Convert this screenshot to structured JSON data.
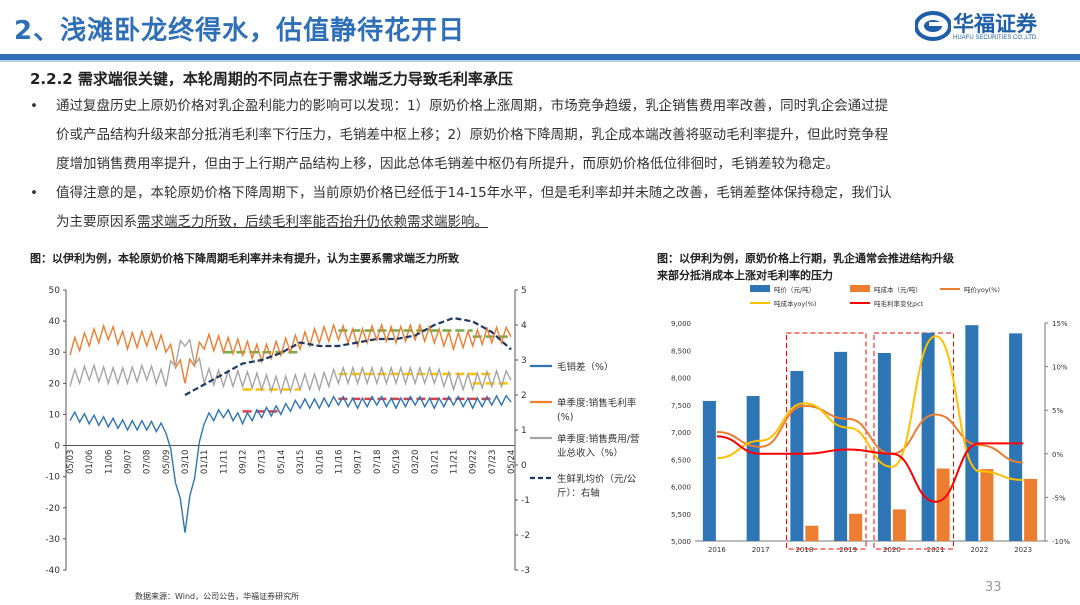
{
  "title": "2、浅滩卧龙终得水，估值静待花开日",
  "logo": {
    "name": "华福证券",
    "sub": "HUAFU SECURITIES CO.,LTD."
  },
  "heading": "2.2.2 需求端很关键，本轮周期的不同点在于需求端乏力导致毛利率承压",
  "bullets": [
    {
      "dot": "•",
      "lines": [
        "通过复盘历史上原奶价格对乳企盈利能力的影响可以发现：1）原奶价格上涨周期，市场竞争趋缓，乳企销售费用率改善，同时乳企会通过提",
        "价或产品结构升级来部分抵消毛利率下行压力，毛销差中枢上移；2）原奶价格下降周期，乳企成本端改善将驱动毛利率提升，但此时竞争程",
        "度增加销售费用率提升，但由于上行期产品结构上移，因此总体毛销差中枢仍有所提升，而原奶价格低位徘徊时，毛销差较为稳定。"
      ]
    },
    {
      "dot": "•",
      "line1": "值得注意的是，本轮原奶价格下降周期下，当前原奶价格已经低于14-15年水平，但是毛利率却并未随之改善，毛销差整体保持稳定，我们认",
      "line2_pre": "为主要原因系",
      "line2_u": "需求端乏力所致，后续毛利率能否抬升仍依赖需求端影响。"
    }
  ],
  "caption_left": "图：以伊利为例，本轮原奶价格下降周期毛利率并未有提升，认为主要系需求端乏力所致",
  "caption_right": [
    "图：以伊利为例，原奶价格上行期，乳企通常会推进结构升级",
    "来部分抵消成本上涨对毛利率的压力"
  ],
  "colors": {
    "blue": "#2e75b6",
    "orange": "#ed7d31",
    "gray": "#a5a5a5",
    "navy": "#1f3864",
    "green": "#70ad47",
    "yellow": "#ffc000",
    "red": "#e00000",
    "redline": "#ff0000",
    "dash": "#d9414a"
  },
  "chart_data": [
    {
      "type": "line",
      "title": "以伊利为例，本轮原奶价格下降周期毛利率并未有提升",
      "ylim": [
        -40,
        50
      ],
      "y2lim": [
        -3,
        5
      ],
      "yticks": [
        "50",
        "40",
        "30",
        "20",
        "10",
        "0",
        "-10",
        "-20",
        "-30",
        "-40"
      ],
      "y2ticks": [
        "5",
        "4",
        "3",
        "2",
        "1",
        "0",
        "-1",
        "-2",
        "-3"
      ],
      "categories": [
        "05/03",
        "01/06",
        "11/06",
        "09/07",
        "07/08",
        "05/09",
        "03/10",
        "01/11",
        "11/11",
        "09/12",
        "07/13",
        "05/14",
        "03/15",
        "01/16",
        "11/16",
        "09/17",
        "07/18",
        "05/19",
        "03/20",
        "01/21",
        "11/21",
        "09/22",
        "07/23",
        "05/24"
      ],
      "series": [
        {
          "name": "毛销差（%）",
          "axis": "left",
          "values": [
            9,
            8,
            7,
            6,
            6,
            5,
            -27,
            8,
            10,
            8,
            10,
            11,
            13,
            13,
            14,
            13,
            14,
            13,
            14,
            13,
            14,
            13,
            14,
            14
          ]
        },
        {
          "name": "单季度:销售毛利率(%)",
          "axis": "left",
          "values": [
            31,
            34,
            36,
            33,
            34,
            32,
            22,
            33,
            32,
            31,
            29,
            31,
            33,
            35,
            36,
            34,
            36,
            35,
            36,
            35,
            33,
            34,
            35,
            35
          ]
        },
        {
          "name": "单季度:销售费用/营业总收入（%）",
          "axis": "left",
          "values": [
            21,
            23,
            22,
            22,
            23,
            21,
            34,
            22,
            21,
            21,
            20,
            19,
            20,
            20,
            22,
            22,
            22,
            22,
            22,
            22,
            20,
            20,
            21,
            21
          ]
        },
        {
          "name": "生鲜乳均价（元/公斤）：右轴",
          "axis": "right",
          "values": [
            null,
            null,
            null,
            null,
            null,
            null,
            2.0,
            2.3,
            2.6,
            2.9,
            3.0,
            3.2,
            3.5,
            3.4,
            3.4,
            3.5,
            3.6,
            3.6,
            3.7,
            4.0,
            4.2,
            4.1,
            3.8,
            3.3
          ]
        }
      ],
      "dashed_levels": [
        {
          "color": "green",
          "value": 30
        },
        {
          "color": "green",
          "value": 37
        },
        {
          "color": "green",
          "value": 35
        },
        {
          "color": "yellow",
          "value": 18
        },
        {
          "color": "yellow",
          "value": 23
        },
        {
          "color": "yellow",
          "value": 20
        },
        {
          "color": "dashred",
          "value": 11
        },
        {
          "color": "dashred",
          "value": 15
        }
      ],
      "legend": [
        {
          "label": "毛销差（%）",
          "color": "blue",
          "style": "solid"
        },
        {
          "label": "单季度:销售毛利率",
          "label2": "(%)",
          "color": "orange",
          "style": "solid"
        },
        {
          "label": "单季度:销售费用/营",
          "label2": "业总收入（%）",
          "color": "gray",
          "style": "solid"
        },
        {
          "label": "生鲜乳均价（元/公",
          "label2": "斤）：右轴",
          "color": "navy",
          "style": "dash"
        }
      ]
    },
    {
      "type": "bar+line",
      "title": "以伊利为例，原奶价格上行期，乳企通常会推进结构升级",
      "categories": [
        "2016",
        "2017",
        "2018",
        "2019",
        "2020",
        "2021",
        "2022",
        "2023"
      ],
      "ylim": [
        5000,
        9000
      ],
      "y2lim": [
        -10,
        15
      ],
      "yticks": [
        "9,000",
        "8,500",
        "8,000",
        "7,500",
        "7,000",
        "6,500",
        "6,000",
        "5,500",
        "5,000"
      ],
      "y2ticks": [
        "15%",
        "10%",
        "5%",
        "0%",
        "-5%",
        "-10%"
      ],
      "series": [
        {
          "name": "吨价（元/吨）",
          "type": "bar",
          "color": "blue",
          "values": [
            7570,
            7660,
            8120,
            8470,
            8450,
            8820,
            8960,
            8810
          ]
        },
        {
          "name": "吨成本（元/吨）",
          "type": "bar",
          "color": "orange",
          "values": [
            null,
            null,
            5280,
            5500,
            5580,
            6330,
            6320,
            6140
          ]
        },
        {
          "name": "吨价yoy(%)",
          "type": "line",
          "color": "orange",
          "values": [
            2.5,
            0.8,
            5.5,
            4.0,
            0.0,
            4.5,
            1.0,
            -1.0
          ]
        },
        {
          "name": "吨成本yoy(%)",
          "type": "line",
          "color": "yellow",
          "values": [
            -0.5,
            1.5,
            5.8,
            3.0,
            -1.5,
            13.5,
            -2.0,
            -3.0
          ]
        },
        {
          "name": "吨毛利率变化pct",
          "type": "line",
          "color": "redline",
          "values": [
            2.0,
            0.0,
            0.0,
            0.5,
            0.0,
            -5.5,
            1.2,
            1.2
          ]
        }
      ],
      "legend": [
        {
          "label": "吨价（元/吨）",
          "color": "blue",
          "style": "box"
        },
        {
          "label": "吨成本（元/吨）",
          "color": "orange",
          "style": "box"
        },
        {
          "label": "吨价yoy(%)",
          "color": "orange",
          "style": "line"
        },
        {
          "label": "吨成本yoy(%)",
          "color": "yellow",
          "style": "line"
        },
        {
          "label": "吨毛利率变化pct",
          "color": "redline",
          "style": "line"
        }
      ]
    }
  ],
  "source": "数据来源：Wind，公司公告，华福证券研究所",
  "page_number": "33"
}
